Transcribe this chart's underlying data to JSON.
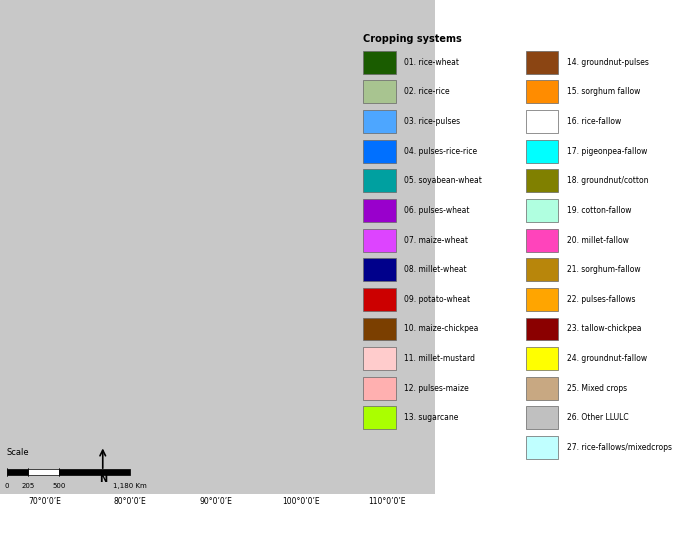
{
  "title": "",
  "legend_title": "Cropping systems",
  "legend_items_left": [
    {
      "label": "01. rice-wheat",
      "color": "#1a5c00"
    },
    {
      "label": "02. rice-rice",
      "color": "#a8c490"
    },
    {
      "label": "03. rice-pulses",
      "color": "#4da6ff"
    },
    {
      "label": "04. pulses-rice-rice",
      "color": "#0070ff"
    },
    {
      "label": "05. soyabean-wheat",
      "color": "#00a0a0"
    },
    {
      "label": "06. pulses-wheat",
      "color": "#9900cc"
    },
    {
      "label": "07. maize-wheat",
      "color": "#dd44ff"
    },
    {
      "label": "08. millet-wheat",
      "color": "#00008b"
    },
    {
      "label": "09. potato-wheat",
      "color": "#cc0000"
    },
    {
      "label": "10. maize-chickpea",
      "color": "#7b3f00"
    },
    {
      "label": "11. millet-mustard",
      "color": "#ffcccc"
    },
    {
      "label": "12. pulses-maize",
      "color": "#ffb0b0"
    },
    {
      "label": "13. sugarcane",
      "color": "#aaff00"
    }
  ],
  "legend_items_right": [
    {
      "label": "14. groundnut-pulses",
      "color": "#8b4513"
    },
    {
      "label": "15. sorghum fallow",
      "color": "#ff8c00"
    },
    {
      "label": "16. rice-fallow",
      "color": "#ffffff"
    },
    {
      "label": "17. pigeonpea-fallow",
      "color": "#00ffff"
    },
    {
      "label": "18. groundnut/cotton",
      "color": "#808000"
    },
    {
      "label": "19. cotton-fallow",
      "color": "#b0ffe0"
    },
    {
      "label": "20. millet-fallow",
      "color": "#ff44bb"
    },
    {
      "label": "21. sorghum-fallow",
      "color": "#b8860b"
    },
    {
      "label": "22. pulses-fallows",
      "color": "#ffa500"
    },
    {
      "label": "23. tallow-chickpea",
      "color": "#8b0000"
    },
    {
      "label": "24. groundnut-fallow",
      "color": "#ffff00"
    },
    {
      "label": "25. Mixed crops",
      "color": "#c8a882"
    },
    {
      "label": "26. Other LLULC",
      "color": "#c0c0c0"
    },
    {
      "label": "27. rice-fallows/mixedcrops",
      "color": "#c0ffff"
    }
  ],
  "bg_color": "#ffffff",
  "map_bg": "#d3d3d3",
  "bottom_labels": [
    "70°0’0’E",
    "80°0’0’E",
    "90°0’0’E",
    "100°0’0’E",
    "110°0’0’E"
  ],
  "scale_text": "Scale",
  "scale_values": [
    "0",
    "205",
    "500",
    "1,180 Km"
  ]
}
